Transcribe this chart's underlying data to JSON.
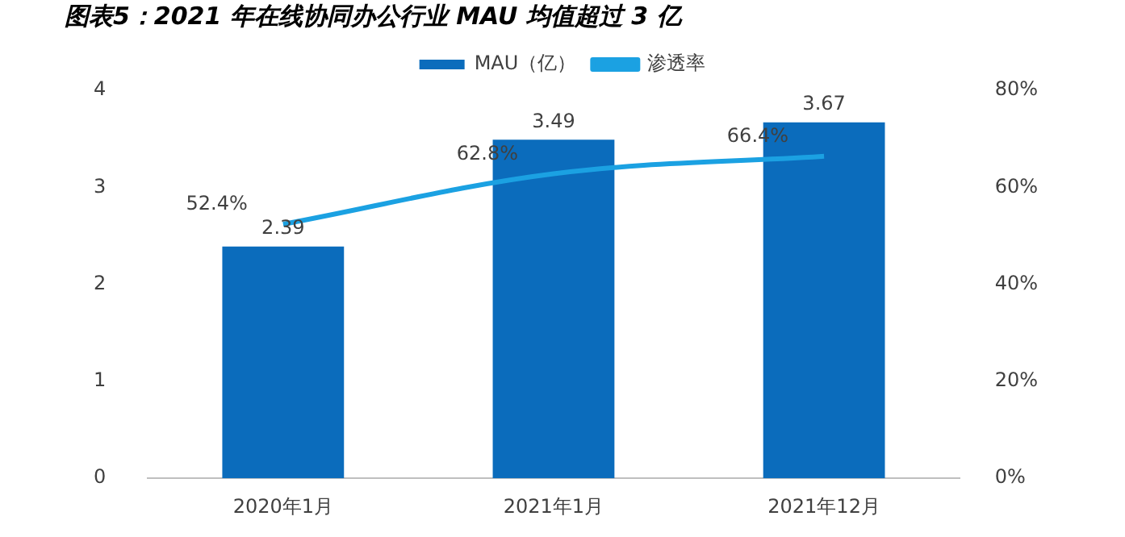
{
  "chart_data": {
    "type": "bar",
    "title": "图表5：2021 年在线协同办公行业 MAU 均值超过 3 亿",
    "categories": [
      "2020年1月",
      "2021年1月",
      "2021年12月"
    ],
    "series": [
      {
        "name": "MAU（亿）",
        "color": "#0b6cbc",
        "values": [
          2.39,
          3.49,
          3.67
        ],
        "value_labels": [
          "2.39",
          "3.49",
          "3.67"
        ]
      },
      {
        "name": "渗透率",
        "type": "line",
        "axis": "y2",
        "color": "#1ba1e2",
        "values": [
          52.4,
          62.8,
          66.4
        ],
        "value_labels": [
          "52.4%",
          "62.8%",
          "66.4%"
        ]
      }
    ],
    "ylim": [
      0,
      4
    ],
    "yticks": [
      0,
      1,
      2,
      3,
      4
    ],
    "y2lim": [
      0,
      80
    ],
    "y2ticks": [
      {
        "value": 0,
        "label": "0%"
      },
      {
        "value": 20,
        "label": "20%"
      },
      {
        "value": 40,
        "label": "40%"
      },
      {
        "value": 60,
        "label": "60%"
      },
      {
        "value": 80,
        "label": "80%"
      }
    ],
    "legend": "top",
    "grid": false,
    "marker": "none"
  }
}
